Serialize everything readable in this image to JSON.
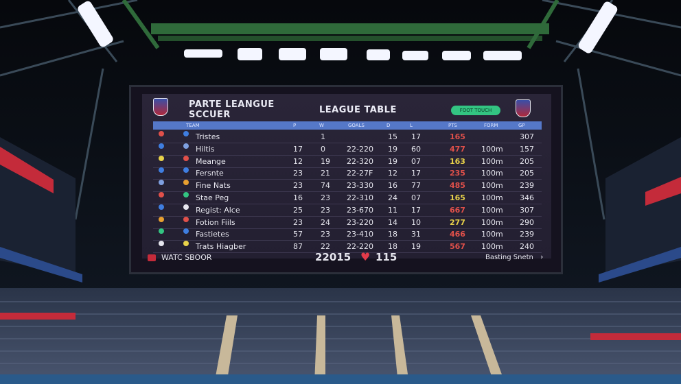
{
  "board": {
    "title_left_line1": "PARTE LEANGUE",
    "title_left_line2": "SCCUER",
    "title_center": "LEAGUE TABLE",
    "pill_label": "FOOT TOUCH",
    "header": [
      "TEAM",
      "P",
      "W",
      "GOALS",
      "D",
      "L",
      "PTS",
      "FORM",
      "GP"
    ],
    "rows": [
      {
        "team": "Tristes",
        "p": "",
        "w": "1",
        "goals": "",
        "d": "15",
        "l": "17",
        "pts": "165",
        "form": "",
        "gp": "307",
        "pts_color": "#e0504a"
      },
      {
        "team": "Hiltis",
        "p": "17",
        "w": "0",
        "goals": "22-220",
        "d": "19",
        "l": "60",
        "pts": "477",
        "form": "100m",
        "gp": "157",
        "pts_color": "#e0504a"
      },
      {
        "team": "Meange",
        "p": "12",
        "w": "19",
        "goals": "22-320",
        "d": "19",
        "l": "07",
        "pts": "163",
        "form": "100m",
        "gp": "205",
        "pts_color": "#e8d24a"
      },
      {
        "team": "Fersnte",
        "p": "23",
        "w": "21",
        "goals": "22-27F",
        "d": "12",
        "l": "17",
        "pts": "235",
        "form": "100m",
        "gp": "205",
        "pts_color": "#e0504a"
      },
      {
        "team": "Fine Nats",
        "p": "23",
        "w": "74",
        "goals": "23-330",
        "d": "16",
        "l": "77",
        "pts": "485",
        "form": "100m",
        "gp": "239",
        "pts_color": "#e0504a"
      },
      {
        "team": "Stae Peg",
        "p": "16",
        "w": "23",
        "goals": "22-310",
        "d": "24",
        "l": "07",
        "pts": "165",
        "form": "100m",
        "gp": "346",
        "pts_color": "#e8d24a"
      },
      {
        "team": "Regist: Alce",
        "p": "25",
        "w": "23",
        "goals": "23-670",
        "d": "11",
        "l": "17",
        "pts": "667",
        "form": "100m",
        "gp": "307",
        "pts_color": "#e0504a"
      },
      {
        "team": "Fotion Fiils",
        "p": "23",
        "w": "24",
        "goals": "23-220",
        "d": "14",
        "l": "10",
        "pts": "277",
        "form": "100m",
        "gp": "290",
        "pts_color": "#e8d24a"
      },
      {
        "team": "Fastietes",
        "p": "57",
        "w": "23",
        "goals": "23-410",
        "d": "18",
        "l": "31",
        "pts": "466",
        "form": "100m",
        "gp": "239",
        "pts_color": "#e0504a"
      },
      {
        "team": "Trats Hiagber",
        "p": "87",
        "w": "22",
        "goals": "22-220",
        "d": "18",
        "l": "19",
        "pts": "567",
        "form": "100m",
        "gp": "240",
        "pts_color": "#e0504a"
      }
    ],
    "footer_left": "WATC SBOOR",
    "footer_year": "22015",
    "footer_likes": "115",
    "footer_right": "Basting Snetn"
  },
  "colors": {
    "header_bar": "#5578c8",
    "pill": "#33c482",
    "heart": "#e23b4a"
  }
}
